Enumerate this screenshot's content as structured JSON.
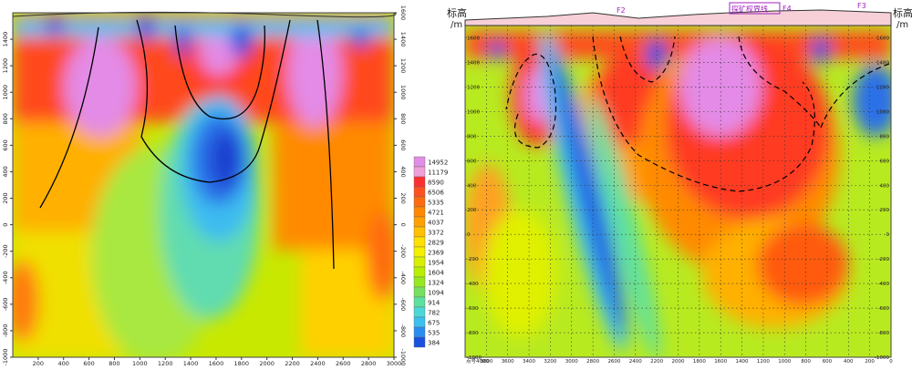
{
  "chart_data": [
    {
      "type": "heatmap",
      "title": "",
      "xlabel": "",
      "ylabel": "",
      "xlim": [
        0,
        3000
      ],
      "ylim": [
        -1000,
        1600
      ],
      "x_ticks": [
        "200",
        "400",
        "600",
        "800",
        "1000",
        "1200",
        "1400",
        "1600",
        "1800",
        "2000",
        "2200",
        "2400",
        "2600",
        "2800",
        "3000"
      ],
      "y_ticks_left": [
        "1400",
        "1200",
        "1000",
        "800",
        "600",
        "400",
        "200",
        "0",
        "-200",
        "-400",
        "-600",
        "-800",
        "-1000"
      ],
      "y_ticks_right": [
        "1600",
        "1400",
        "1200",
        "1000",
        "800",
        "600",
        "400",
        "200",
        "0",
        "-200",
        "-400",
        "-600",
        "-800",
        "-1000"
      ],
      "colorbar_levels": [
        "14952",
        "11179",
        "8590",
        "6506",
        "5335",
        "4721",
        "4037",
        "3372",
        "2829",
        "2369",
        "1954",
        "1604",
        "1324",
        "1094",
        "914",
        "782",
        "675",
        "535",
        "384"
      ],
      "colorbar_colors": [
        "#e08ee6",
        "#f0a0d8",
        "#ff3030",
        "#ff5020",
        "#ff6a10",
        "#ff8800",
        "#ffa000",
        "#ffc000",
        "#ffe000",
        "#f4f000",
        "#d8f000",
        "#b8ee00",
        "#98e820",
        "#78e060",
        "#5ee0a0",
        "#4cd8d8",
        "#3cc0f0",
        "#2a8cf0",
        "#1a50e0"
      ],
      "grid": false
    },
    {
      "type": "heatmap",
      "title": "",
      "ylabel_top_left": "标高",
      "ylabel_unit_left": "/m",
      "ylabel_top_right": "标高",
      "ylabel_unit_right": "/m",
      "x_ticks": [
        "点号4000",
        "3800",
        "3600",
        "3400",
        "3200",
        "3000",
        "2800",
        "2600",
        "2400",
        "2200",
        "2000",
        "1800",
        "1600",
        "1400",
        "1200",
        "1000",
        "800",
        "600",
        "400",
        "200",
        "0"
      ],
      "y_ticks": [
        "1600",
        "1400",
        "1200",
        "1000",
        "800",
        "600",
        "400",
        "200",
        "0",
        "-200",
        "-400",
        "-600",
        "-800",
        "-1000"
      ],
      "fault_labels": [
        "F2",
        "F4",
        "F3"
      ],
      "annotation": "探矿权界线",
      "grid": true
    }
  ]
}
